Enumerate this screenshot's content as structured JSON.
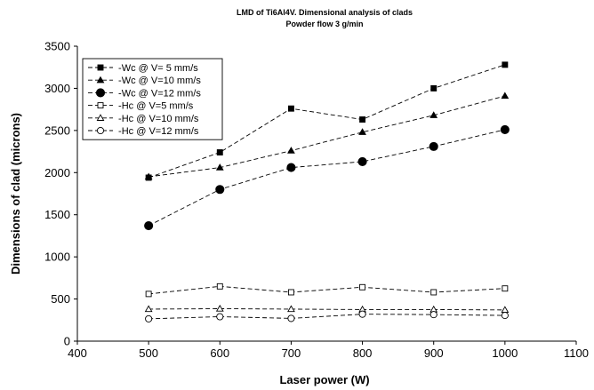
{
  "chart_data": {
    "type": "line",
    "title": "LMD of Ti6Al4V. Dimensional analysis of clads",
    "subtitle": "Powder flow 3 g/min",
    "xlabel": "Laser power (W)",
    "ylabel": "Dimensions of clad (microns)",
    "xlim": [
      400,
      1100
    ],
    "ylim": [
      0,
      3500
    ],
    "xticks": [
      400,
      500,
      600,
      700,
      800,
      900,
      1000,
      1100
    ],
    "yticks": [
      0,
      500,
      1000,
      1500,
      2000,
      2500,
      3000,
      3500
    ],
    "grid": false,
    "legend_position": "top-left",
    "x": [
      500,
      600,
      700,
      800,
      900,
      1000
    ],
    "series": [
      {
        "name": " -Wc @ V= 5 mm/s",
        "marker": "square",
        "filled": true,
        "values": [
          1940,
          2240,
          2760,
          2630,
          3000,
          3280
        ]
      },
      {
        "name": " -Wc @ V=10 mm/s",
        "marker": "triangle",
        "filled": true,
        "values": [
          1950,
          2060,
          2260,
          2480,
          2680,
          2910
        ]
      },
      {
        "name": " -Wc @ V=12 mm/s",
        "marker": "circle",
        "filled": true,
        "values": [
          1370,
          1800,
          2060,
          2130,
          2310,
          2510
        ]
      },
      {
        "name": " -Hc @ V=5 mm/s",
        "marker": "square",
        "filled": false,
        "values": [
          560,
          650,
          580,
          640,
          580,
          625
        ]
      },
      {
        "name": " -Hc @ V=10 mm/s",
        "marker": "triangle",
        "filled": false,
        "values": [
          380,
          385,
          380,
          375,
          375,
          370
        ]
      },
      {
        "name": " -Hc @ V=12 mm/s",
        "marker": "circle",
        "filled": false,
        "values": [
          265,
          290,
          270,
          320,
          315,
          305
        ]
      }
    ]
  }
}
